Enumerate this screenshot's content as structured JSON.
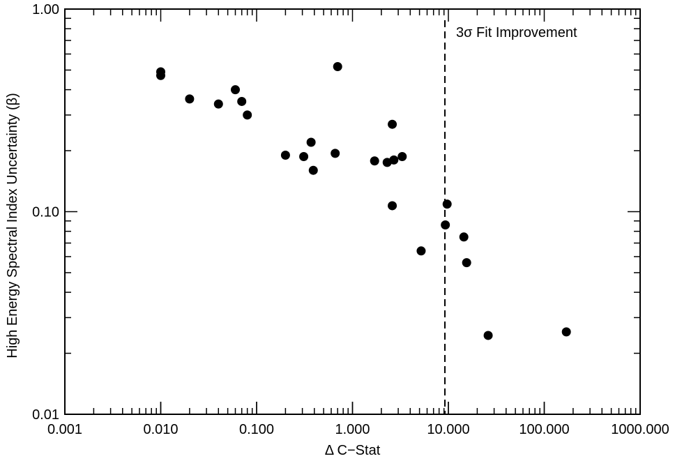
{
  "chart_data": {
    "type": "scatter",
    "xlabel": "Δ C−Stat",
    "ylabel": "High Energy Spectral Index Uncertainty (β)",
    "xscale": "log",
    "yscale": "log",
    "xlim": [
      0.001,
      1000
    ],
    "ylim": [
      0.01,
      1.0
    ],
    "grid": false,
    "x_ticks": [
      {
        "value": 0.001,
        "label": "0.001"
      },
      {
        "value": 0.01,
        "label": "0.010"
      },
      {
        "value": 0.1,
        "label": "0.100"
      },
      {
        "value": 1,
        "label": "1.000"
      },
      {
        "value": 10,
        "label": "10.000"
      },
      {
        "value": 100,
        "label": "100.000"
      },
      {
        "value": 1000,
        "label": "1000.000"
      }
    ],
    "y_ticks": [
      {
        "value": 0.01,
        "label": "0.01"
      },
      {
        "value": 0.1,
        "label": "0.10"
      },
      {
        "value": 1.0,
        "label": "1.00"
      }
    ],
    "threshold_line": {
      "x": 9.2,
      "style": "dashed",
      "label": "3σ Fit Improvement"
    },
    "points": [
      {
        "x": 0.01,
        "y": 0.49
      },
      {
        "x": 0.01,
        "y": 0.47
      },
      {
        "x": 0.02,
        "y": 0.36
      },
      {
        "x": 0.04,
        "y": 0.34
      },
      {
        "x": 0.06,
        "y": 0.4
      },
      {
        "x": 0.07,
        "y": 0.35
      },
      {
        "x": 0.08,
        "y": 0.3
      },
      {
        "x": 0.2,
        "y": 0.19
      },
      {
        "x": 0.31,
        "y": 0.187
      },
      {
        "x": 0.37,
        "y": 0.22
      },
      {
        "x": 0.39,
        "y": 0.16
      },
      {
        "x": 0.66,
        "y": 0.194
      },
      {
        "x": 0.7,
        "y": 0.52
      },
      {
        "x": 1.7,
        "y": 0.178
      },
      {
        "x": 2.3,
        "y": 0.175
      },
      {
        "x": 2.6,
        "y": 0.27
      },
      {
        "x": 2.7,
        "y": 0.18
      },
      {
        "x": 3.3,
        "y": 0.187
      },
      {
        "x": 2.6,
        "y": 0.107
      },
      {
        "x": 5.2,
        "y": 0.064
      },
      {
        "x": 9.3,
        "y": 0.086
      },
      {
        "x": 9.7,
        "y": 0.109
      },
      {
        "x": 14.5,
        "y": 0.075
      },
      {
        "x": 15.5,
        "y": 0.056
      },
      {
        "x": 26.0,
        "y": 0.0245
      },
      {
        "x": 170.0,
        "y": 0.0255
      }
    ]
  }
}
